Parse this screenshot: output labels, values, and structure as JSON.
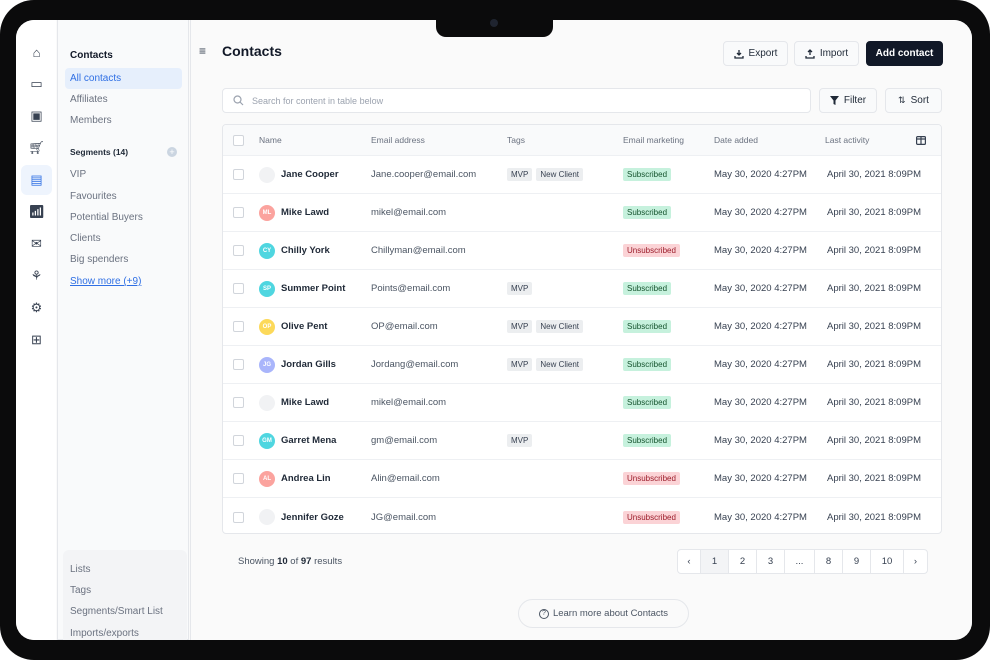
{
  "sidebar": {
    "title": "Contacts",
    "items": [
      {
        "label": "All contacts",
        "active": true
      },
      {
        "label": "Affiliates"
      },
      {
        "label": "Members"
      }
    ],
    "segments_label": "Segments (14)",
    "segments": [
      "VIP",
      "Favourites",
      "Potential Buyers",
      "Clients",
      "Big spenders"
    ],
    "show_more": "Show more (+9)",
    "bottom": [
      "Lists",
      "Tags",
      "Segments/Smart List",
      "Imports/exports"
    ]
  },
  "rail_icons": [
    "home-icon",
    "browser-window-icon",
    "gift-box-icon",
    "cart-icon",
    "contact-card-icon",
    "analytics-icon",
    "campaign-icon",
    "plant-hand-icon",
    "settings-icon",
    "apps-add-icon"
  ],
  "header": {
    "title": "Contacts",
    "export": "Export",
    "import": "Import",
    "add": "Add contact"
  },
  "search": {
    "placeholder": "Search for content in table below"
  },
  "filter": "Filter",
  "sort": "Sort",
  "table": {
    "columns": [
      "Name",
      "Email address",
      "Tags",
      "Email marketing",
      "Date added",
      "Last activity"
    ],
    "rows": [
      {
        "initials": "",
        "color": "#f1f2f4",
        "name": "Jane Cooper",
        "email": "Jane.cooper@email.com",
        "tags": [
          "MVP",
          "New Client"
        ],
        "marketing": "Subscribed",
        "added": "May 30, 2020 4:27PM",
        "last": "April 30, 2021 8:09PM"
      },
      {
        "initials": "ML",
        "color": "#fba39e",
        "name": "Mike Lawd",
        "email": "mikel@email.com",
        "tags": [],
        "marketing": "Subscribed",
        "added": "May 30, 2020 4:27PM",
        "last": "April 30, 2021 8:09PM"
      },
      {
        "initials": "CY",
        "color": "#4fd6e0",
        "name": "Chilly York",
        "email": "Chillyman@email.com",
        "tags": [],
        "marketing": "Unsubscribed",
        "added": "May 30, 2020 4:27PM",
        "last": "April 30, 2021 8:09PM"
      },
      {
        "initials": "SP",
        "color": "#4fd6e0",
        "name": "Summer Point",
        "email": "Points@email.com",
        "tags": [
          "MVP"
        ],
        "marketing": "Subscribed",
        "added": "May 30, 2020 4:27PM",
        "last": "April 30, 2021 8:09PM"
      },
      {
        "initials": "OP",
        "color": "#fcd95a",
        "name": "Olive Pent",
        "email": "OP@email.com",
        "tags": [
          "MVP",
          "New Client"
        ],
        "marketing": "Subscribed",
        "added": "May 30, 2020 4:27PM",
        "last": "April 30, 2021 8:09PM"
      },
      {
        "initials": "JG",
        "color": "#a9b5fb",
        "name": "Jordan Gills",
        "email": "Jordang@email.com",
        "tags": [
          "MVP",
          "New Client"
        ],
        "marketing": "Subscribed",
        "added": "May 30, 2020 4:27PM",
        "last": "April 30, 2021 8:09PM"
      },
      {
        "initials": "",
        "color": "#f1f2f4",
        "name": "Mike Lawd",
        "email": "mikel@email.com",
        "tags": [],
        "marketing": "Subscribed",
        "added": "May 30, 2020 4:27PM",
        "last": "April 30, 2021 8:09PM"
      },
      {
        "initials": "GM",
        "color": "#4fd6e0",
        "name": "Garret Mena",
        "email": "gm@email.com",
        "tags": [
          "MVP"
        ],
        "marketing": "Subscribed",
        "added": "May 30, 2020 4:27PM",
        "last": "April 30, 2021 8:09PM"
      },
      {
        "initials": "AL",
        "color": "#fba39e",
        "name": "Andrea Lin",
        "email": "Alin@email.com",
        "tags": [],
        "marketing": "Unsubscribed",
        "added": "May 30, 2020 4:27PM",
        "last": "April 30, 2021 8:09PM"
      },
      {
        "initials": "",
        "color": "#f1f2f4",
        "name": "Jennifer Goze",
        "email": "JG@email.com",
        "tags": [],
        "marketing": "Unsubscribed",
        "added": "May 30, 2020 4:27PM",
        "last": "April 30, 2021 8:09PM"
      }
    ]
  },
  "footer": {
    "showing_prefix": "Showing ",
    "shown": "10",
    "of": " of ",
    "total": "97",
    "suffix": " results"
  },
  "pagination": {
    "pages": [
      "1",
      "2",
      "3",
      "...",
      "8",
      "9",
      "10"
    ],
    "current": "1",
    "prev": "‹",
    "next": "›"
  },
  "learn_more": "Learn more about Contacts",
  "colors": {
    "accent": "#2f6fe4",
    "primary_button": "#111827",
    "subscribed_bg": "#c6f1dd",
    "unsubscribed_bg": "#fbd3d6"
  }
}
